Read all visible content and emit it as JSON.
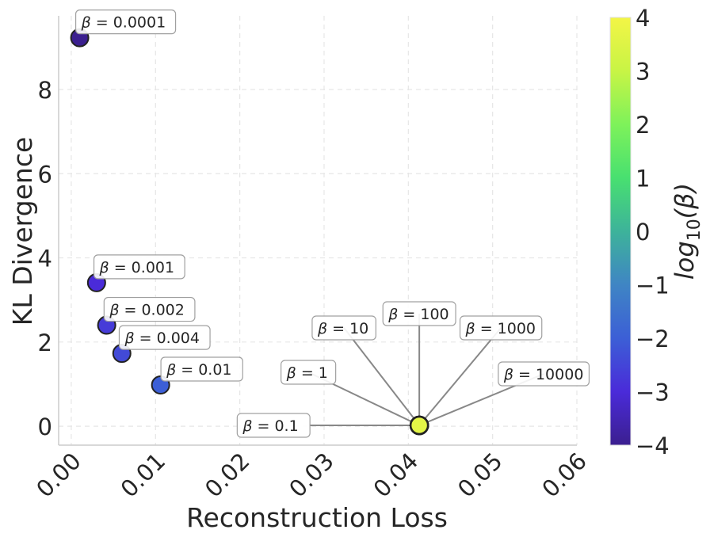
{
  "chart_data": {
    "type": "scatter",
    "xlabel": "Reconstruction Loss",
    "ylabel": "KL Divergence",
    "xlim": [
      -0.0015,
      0.06
    ],
    "ylim": [
      -0.45,
      9.75
    ],
    "x_ticks": [
      0.0,
      0.01,
      0.02,
      0.03,
      0.04,
      0.05,
      0.06
    ],
    "x_tick_labels": [
      "0.00",
      "0.01",
      "0.02",
      "0.03",
      "0.04",
      "0.05",
      "0.06"
    ],
    "y_ticks": [
      0,
      2,
      4,
      6,
      8
    ],
    "y_tick_labels": [
      "0",
      "2",
      "4",
      "6",
      "8"
    ],
    "grid": true,
    "colorbar": {
      "label": "log10(β)",
      "label_base": "log",
      "label_sub": "10",
      "label_arg": "(β)",
      "min": -4,
      "max": 4,
      "ticks": [
        -4,
        -3,
        -2,
        -1,
        0,
        1,
        2,
        3,
        4
      ],
      "tick_labels": [
        "−4",
        "−3",
        "−2",
        "−1",
        "0",
        "1",
        "2",
        "3",
        "4"
      ],
      "colormap": "plasma-like",
      "stops": [
        "#3b1f8f",
        "#4a2bd9",
        "#3c5fd6",
        "#3f85c4",
        "#3db39a",
        "#48e070",
        "#7ef25a",
        "#c8f445",
        "#f3f546"
      ]
    },
    "points": [
      {
        "beta": "0.0001",
        "x": 0.001,
        "y": 9.23,
        "log_beta": -4
      },
      {
        "beta": "0.001",
        "x": 0.003,
        "y": 3.41,
        "log_beta": -3
      },
      {
        "beta": "0.002",
        "x": 0.0042,
        "y": 2.4,
        "log_beta": -2.7
      },
      {
        "beta": "0.004",
        "x": 0.006,
        "y": 1.73,
        "log_beta": -2.4
      },
      {
        "beta": "0.01",
        "x": 0.0106,
        "y": 0.98,
        "log_beta": -2
      },
      {
        "beta": "0.1",
        "x": 0.0413,
        "y": 0.02,
        "log_beta": -1
      },
      {
        "beta": "1",
        "x": 0.0413,
        "y": 0.02,
        "log_beta": 0
      },
      {
        "beta": "10",
        "x": 0.0413,
        "y": 0.02,
        "log_beta": 1
      },
      {
        "beta": "100",
        "x": 0.0413,
        "y": 0.02,
        "log_beta": 2
      },
      {
        "beta": "1000",
        "x": 0.0413,
        "y": 0.02,
        "log_beta": 3
      },
      {
        "beta": "10000",
        "x": 0.0413,
        "y": 0.02,
        "log_beta": 4
      }
    ],
    "annotations": [
      {
        "text": "β = 0.0001",
        "greek": "β",
        "value": "0.0001",
        "point": 0,
        "style": "offset"
      },
      {
        "text": "β = 0.001",
        "greek": "β",
        "value": "0.001",
        "point": 1,
        "style": "offset"
      },
      {
        "text": "β = 0.002",
        "greek": "β",
        "value": "0.002",
        "point": 2,
        "style": "offset"
      },
      {
        "text": "β = 0.004",
        "greek": "β",
        "value": "0.004",
        "point": 3,
        "style": "offset"
      },
      {
        "text": "β = 0.01",
        "greek": "β",
        "value": "0.01",
        "point": 4,
        "style": "offset"
      },
      {
        "text": "β = 0.1",
        "greek": "β",
        "value": "0.1",
        "point": 5,
        "style": "leader"
      },
      {
        "text": "β = 1",
        "greek": "β",
        "value": "1",
        "point": 6,
        "style": "leader"
      },
      {
        "text": "β = 10",
        "greek": "β",
        "value": "10",
        "point": 7,
        "style": "leader"
      },
      {
        "text": "β = 100",
        "greek": "β",
        "value": "100",
        "point": 8,
        "style": "leader"
      },
      {
        "text": "β = 1000",
        "greek": "β",
        "value": "1000",
        "point": 9,
        "style": "leader"
      },
      {
        "text": "β = 10000",
        "greek": "β",
        "value": "10000",
        "point": 10,
        "style": "leader"
      }
    ]
  }
}
